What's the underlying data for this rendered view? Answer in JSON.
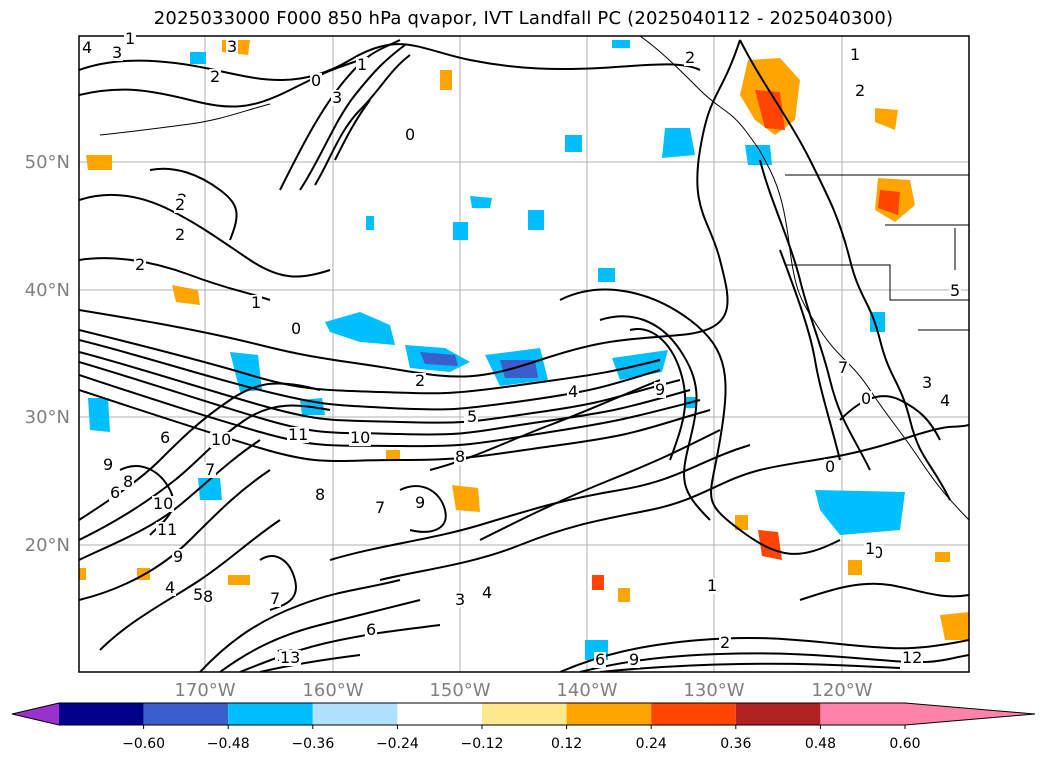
{
  "title": "2025033000 F000 850 hPa qvapor, IVT Landfall PC (2025040112 - 2025040300)",
  "map": {
    "lat_labels": [
      "50°N",
      "40°N",
      "30°N",
      "20°N"
    ],
    "lon_labels": [
      "170°W",
      "160°W",
      "150°W",
      "140°W",
      "130°W",
      "120°W"
    ]
  },
  "colorbar": {
    "colors": [
      "#9932CC",
      "#00008B",
      "#3A5FCD",
      "#00BFFF",
      "#B0E2FF",
      "#FFFFFF",
      "#FFE98C",
      "#FFA500",
      "#FF4500",
      "#B22222",
      "#FF83A8"
    ],
    "ticks": [
      "−0.60",
      "−0.48",
      "−0.36",
      "−0.24",
      "−0.12",
      "0.12",
      "0.24",
      "0.36",
      "0.48",
      "0.60"
    ]
  },
  "contour_labels": [
    "4",
    "3",
    "1",
    "2",
    "3",
    "2",
    "0",
    "3",
    "1",
    "0",
    "2",
    "2",
    "2",
    "1",
    "0",
    "2",
    "3",
    "5",
    "4",
    "9",
    "7",
    "8",
    "9",
    "6",
    "10",
    "11",
    "10",
    "9",
    "8",
    "7",
    "8",
    "6",
    "5",
    "4",
    "10",
    "11",
    "9",
    "8",
    "7",
    "3",
    "4",
    "2",
    "0",
    "1",
    "4",
    "7",
    "3",
    "0",
    "0",
    "1",
    "2",
    "1",
    "2",
    "5",
    "6",
    "9",
    "11",
    "13",
    "12",
    "6"
  ]
}
